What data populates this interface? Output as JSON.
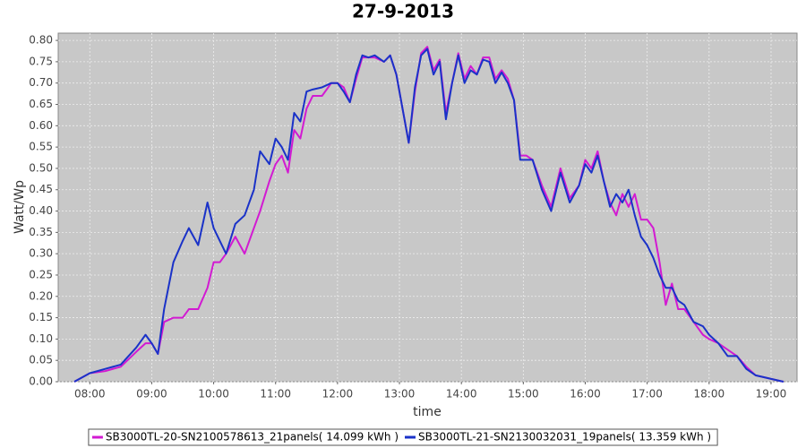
{
  "chart_data": {
    "type": "line",
    "title": "27-9-2013",
    "x_label": "time",
    "y_label": "Watt/Wp",
    "grid": true,
    "legend": "bottom",
    "background": "#c8c8c8",
    "xlim": [
      7.49,
      19.42
    ],
    "ylim": [
      0,
      0.817
    ],
    "xticks": [
      {
        "value": 8,
        "label": "08:00"
      },
      {
        "value": 9,
        "label": "09:00"
      },
      {
        "value": 10,
        "label": "10:00"
      },
      {
        "value": 11,
        "label": "11:00"
      },
      {
        "value": 12,
        "label": "12:00"
      },
      {
        "value": 13,
        "label": "13:00"
      },
      {
        "value": 14,
        "label": "14:00"
      },
      {
        "value": 15,
        "label": "15:00"
      },
      {
        "value": 16,
        "label": "16:00"
      },
      {
        "value": 17,
        "label": "17:00"
      },
      {
        "value": 18,
        "label": "18:00"
      },
      {
        "value": 19,
        "label": "19:00"
      }
    ],
    "yticks": [
      {
        "value": 0,
        "label": "0.00"
      },
      0.05,
      {
        "value": 0.1,
        "label": "0.10"
      },
      0.15,
      {
        "value": 0.2,
        "label": "0.20"
      },
      0.25,
      {
        "value": 0.3,
        "label": "0.30"
      },
      0.35,
      {
        "value": 0.4,
        "label": "0.40"
      },
      0.45,
      {
        "value": 0.5,
        "label": "0.50"
      },
      0.55,
      {
        "value": 0.6,
        "label": "0.60"
      },
      0.65,
      {
        "value": 0.7,
        "label": "0.70"
      },
      0.75,
      {
        "value": 0.8,
        "label": "0.80"
      }
    ],
    "x": [
      7.75,
      8.0,
      8.25,
      8.5,
      8.75,
      8.9,
      9.0,
      9.1,
      9.2,
      9.35,
      9.5,
      9.6,
      9.75,
      9.9,
      10.0,
      10.1,
      10.2,
      10.35,
      10.5,
      10.65,
      10.75,
      10.9,
      11.0,
      11.1,
      11.2,
      11.3,
      11.4,
      11.5,
      11.6,
      11.75,
      11.9,
      12.0,
      12.1,
      12.2,
      12.3,
      12.4,
      12.5,
      12.6,
      12.75,
      12.85,
      12.95,
      13.05,
      13.15,
      13.25,
      13.35,
      13.45,
      13.55,
      13.65,
      13.75,
      13.85,
      13.95,
      14.05,
      14.15,
      14.25,
      14.35,
      14.45,
      14.55,
      14.65,
      14.75,
      14.85,
      14.95,
      15.05,
      15.15,
      15.3,
      15.45,
      15.6,
      15.75,
      15.9,
      16.0,
      16.1,
      16.2,
      16.3,
      16.4,
      16.5,
      16.6,
      16.7,
      16.8,
      16.9,
      17.0,
      17.1,
      17.2,
      17.3,
      17.4,
      17.5,
      17.6,
      17.75,
      17.9,
      18.0,
      18.15,
      18.3,
      18.45,
      18.6,
      18.75,
      18.9,
      19.05,
      19.2
    ],
    "series": [
      {
        "name": "SB3000TL-20-SN2100578613_21panels( 14.099 kWh )",
        "color": "#d21ad2",
        "values": [
          0.0,
          0.02,
          0.025,
          0.035,
          0.07,
          0.09,
          0.09,
          0.065,
          0.14,
          0.15,
          0.15,
          0.17,
          0.17,
          0.22,
          0.28,
          0.28,
          0.3,
          0.34,
          0.3,
          0.36,
          0.4,
          0.47,
          0.51,
          0.53,
          0.49,
          0.59,
          0.57,
          0.64,
          0.67,
          0.67,
          0.7,
          0.7,
          0.69,
          0.655,
          0.71,
          0.76,
          0.76,
          0.76,
          0.75,
          0.765,
          0.72,
          0.64,
          0.56,
          0.68,
          0.77,
          0.785,
          0.73,
          0.755,
          0.63,
          0.7,
          0.77,
          0.71,
          0.74,
          0.72,
          0.76,
          0.76,
          0.71,
          0.73,
          0.71,
          0.66,
          0.53,
          0.53,
          0.52,
          0.46,
          0.41,
          0.5,
          0.43,
          0.46,
          0.52,
          0.5,
          0.54,
          0.47,
          0.42,
          0.39,
          0.44,
          0.41,
          0.44,
          0.38,
          0.38,
          0.36,
          0.28,
          0.18,
          0.23,
          0.17,
          0.17,
          0.14,
          0.11,
          0.1,
          0.09,
          0.075,
          0.06,
          0.035,
          0.015,
          0.01,
          0.005,
          0.0
        ]
      },
      {
        "name": "SB3000TL-21-SN2130032031_19panels( 13.359 kWh )",
        "color": "#1a32c8",
        "values": [
          0.0,
          0.02,
          0.03,
          0.04,
          0.08,
          0.11,
          0.09,
          0.065,
          0.17,
          0.28,
          0.33,
          0.36,
          0.32,
          0.42,
          0.36,
          0.33,
          0.3,
          0.37,
          0.39,
          0.45,
          0.54,
          0.51,
          0.57,
          0.55,
          0.52,
          0.63,
          0.61,
          0.68,
          0.685,
          0.69,
          0.7,
          0.7,
          0.68,
          0.655,
          0.72,
          0.765,
          0.76,
          0.765,
          0.75,
          0.765,
          0.72,
          0.64,
          0.56,
          0.69,
          0.765,
          0.78,
          0.72,
          0.75,
          0.615,
          0.7,
          0.765,
          0.7,
          0.73,
          0.72,
          0.755,
          0.75,
          0.7,
          0.725,
          0.7,
          0.66,
          0.52,
          0.52,
          0.52,
          0.45,
          0.4,
          0.49,
          0.42,
          0.46,
          0.51,
          0.49,
          0.53,
          0.47,
          0.41,
          0.44,
          0.42,
          0.45,
          0.39,
          0.34,
          0.32,
          0.29,
          0.25,
          0.22,
          0.22,
          0.19,
          0.18,
          0.14,
          0.13,
          0.11,
          0.09,
          0.06,
          0.06,
          0.03,
          0.015,
          0.01,
          0.005,
          0.0
        ]
      }
    ]
  }
}
